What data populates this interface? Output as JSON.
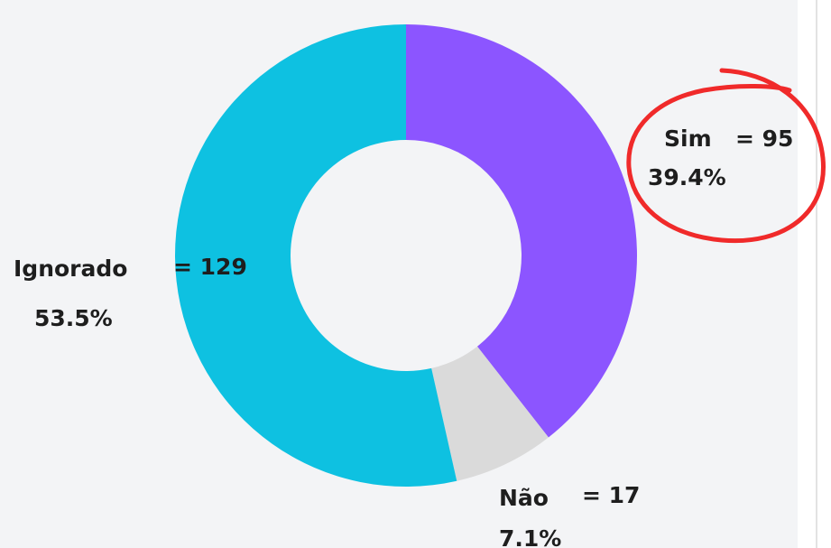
{
  "chart_data": {
    "type": "donut",
    "categories": [
      "Sim",
      "Não",
      "Ignorado"
    ],
    "values": [
      95,
      17,
      129
    ],
    "value_labels": [
      "= 95",
      "= 17",
      "= 129"
    ],
    "percentages": [
      39.4,
      7.1,
      53.5
    ],
    "percentage_labels": [
      "39.4%",
      "7.1%",
      "53.5%"
    ],
    "colors": [
      "#8c55ff",
      "#dadada",
      "#0ec1e1"
    ]
  }
}
